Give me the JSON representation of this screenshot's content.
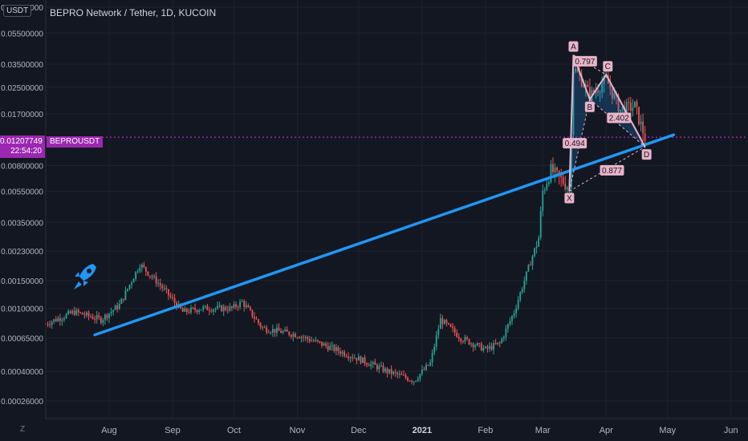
{
  "header": {
    "title": "BEPRO Network / Tether, 1D, KUCOIN",
    "currency": "USDT"
  },
  "price_tag": {
    "price": "0.01207749",
    "countdown": "22:54:20",
    "symbol": "BEPROUSDT"
  },
  "zoom_label": "Z",
  "colors": {
    "bg": "#131722",
    "up": "#26a69a",
    "down": "#ef5350",
    "trend": "#2196f3",
    "pattern": "#e8b4c8",
    "price_line": "#9c27b0"
  },
  "chart_data": {
    "type": "candlestick",
    "y_scale": "log",
    "y_ticks": [
      "0.08000000",
      "0.05500000",
      "0.03500000",
      "0.02500000",
      "0.01700000",
      "0.00800000",
      "0.00550000",
      "0.00350000",
      "0.00230000",
      "0.00150000",
      "0.00100000",
      "0.00065000",
      "0.00040000",
      "0.00026000"
    ],
    "x_ticks": [
      "Aug",
      "Sep",
      "Oct",
      "Nov",
      "Dec",
      "2021",
      "Feb",
      "Mar",
      "Apr",
      "May",
      "Jun"
    ],
    "current_price": 0.01207749,
    "trendline": {
      "from": [
        "2020-07-25",
        0.00068
      ],
      "to": [
        "2021-05-04",
        0.0125
      ]
    },
    "harmonic_pattern": {
      "points": [
        {
          "label": "X",
          "date": "2021-03-14",
          "price": 0.0055
        },
        {
          "label": "A",
          "date": "2021-03-16",
          "price": 0.04
        },
        {
          "label": "B",
          "date": "2021-03-24",
          "price": 0.021
        },
        {
          "label": "C",
          "date": "2021-04-01",
          "price": 0.03
        },
        {
          "label": "D",
          "date": "2021-04-20",
          "price": 0.0105
        }
      ],
      "ratios": [
        "0.797",
        "2.402",
        "0.494",
        "0.877"
      ]
    },
    "series_anchors": [
      [
        "2020-07-01",
        0.0008
      ],
      [
        "2020-07-15",
        0.00095
      ],
      [
        "2020-07-28",
        0.00085
      ],
      [
        "2020-08-06",
        0.00105
      ],
      [
        "2020-08-16",
        0.0019
      ],
      [
        "2020-08-26",
        0.0014
      ],
      [
        "2020-09-06",
        0.00095
      ],
      [
        "2020-09-15",
        0.001
      ],
      [
        "2020-09-30",
        0.001
      ],
      [
        "2020-10-05",
        0.0011
      ],
      [
        "2020-10-15",
        0.00075
      ],
      [
        "2020-11-01",
        0.00068
      ],
      [
        "2020-11-15",
        0.00058
      ],
      [
        "2020-12-01",
        0.00048
      ],
      [
        "2020-12-15",
        0.0004
      ],
      [
        "2020-12-28",
        0.00035
      ],
      [
        "2021-01-05",
        0.00045
      ],
      [
        "2021-01-10",
        0.00085
      ],
      [
        "2021-01-20",
        0.00065
      ],
      [
        "2021-02-01",
        0.00055
      ],
      [
        "2021-02-08",
        0.0006
      ],
      [
        "2021-02-15",
        0.00095
      ],
      [
        "2021-02-22",
        0.0018
      ],
      [
        "2021-02-27",
        0.0028
      ],
      [
        "2021-03-01",
        0.0055
      ],
      [
        "2021-03-05",
        0.0075
      ],
      [
        "2021-03-10",
        0.0065
      ],
      [
        "2021-03-14",
        0.0058
      ],
      [
        "2021-03-16",
        0.033
      ],
      [
        "2021-03-20",
        0.028
      ],
      [
        "2021-03-24",
        0.022
      ],
      [
        "2021-04-01",
        0.028
      ],
      [
        "2021-04-08",
        0.018
      ],
      [
        "2021-04-15",
        0.019
      ],
      [
        "2021-04-20",
        0.012
      ]
    ]
  }
}
